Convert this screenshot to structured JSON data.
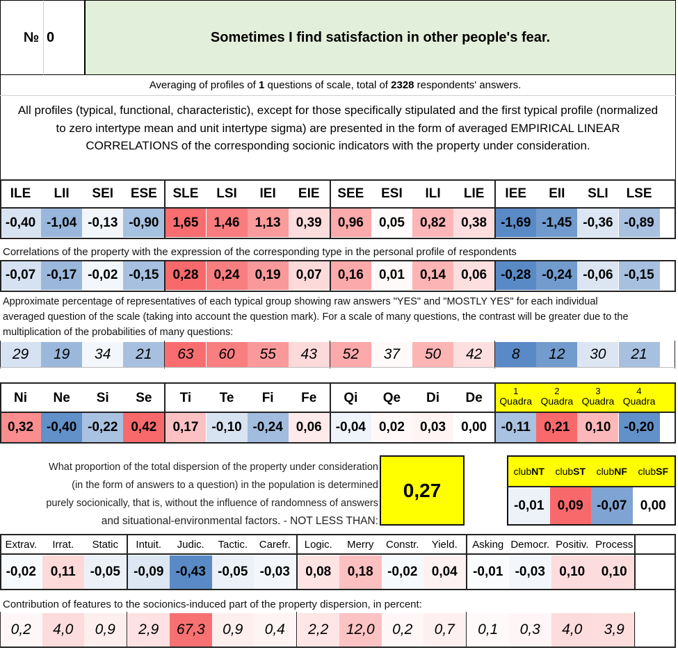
{
  "header": {
    "number_label": "№",
    "number_value": "0",
    "title": "Sometimes I find satisfaction in other people's fear."
  },
  "intro": {
    "avg_prefix": "Averaging of profiles of ",
    "questions_count": "1",
    "avg_middle": " questions of scale, total of ",
    "respondents_count": "2328",
    "avg_suffix": " respondents' answers.",
    "description": "All profiles (typical, functional, characteristic), except for those specifically stipulated and the first typical profile (normalized to zero intertype mean and unit intertype sigma) are presented in the form of averaged EMPIRICAL LINEAR CORRELATIONS of the corresponding socionic indicators with the property under consideration."
  },
  "types": {
    "labels": [
      "ILE",
      "LII",
      "SEI",
      "ESE",
      "SLE",
      "LSI",
      "IEI",
      "EIE",
      "SEE",
      "ESI",
      "ILI",
      "LIE",
      "IEE",
      "EII",
      "SLI",
      "LSE"
    ],
    "normalized": [
      "-0,40",
      "-1,04",
      "-0,13",
      "-0,90",
      "1,65",
      "1,46",
      "1,13",
      "0,39",
      "0,96",
      "0,05",
      "0,82",
      "0,38",
      "-1,69",
      "-1,45",
      "-0,36",
      "-0,89"
    ],
    "correlation_note": "Correlations of the property with the expression of the corresponding type in the personal profile of respondents",
    "correlations": [
      "-0,07",
      "-0,17",
      "-0,02",
      "-0,15",
      "0,28",
      "0,24",
      "0,19",
      "0,07",
      "0,16",
      "0,01",
      "0,14",
      "0,06",
      "-0,28",
      "-0,24",
      "-0,06",
      "-0,15"
    ],
    "percent_note_1": "Approximate percentage of representatives of each typical group showing raw answers \"YES\" and \"MOSTLY YES\" for each individual",
    "percent_note_2": "averaged question of the scale (taking into account the question mark). For a scale of many questions, the contrast will be greater due to the",
    "percent_note_3": "multiplication of the probabilities of many questions:",
    "percentages": [
      "29",
      "19",
      "34",
      "21",
      "63",
      "60",
      "55",
      "43",
      "52",
      "37",
      "50",
      "42",
      "8",
      "12",
      "30",
      "21"
    ]
  },
  "functions": {
    "labels": [
      "Ni",
      "Ne",
      "Si",
      "Se",
      "Ti",
      "Te",
      "Fi",
      "Fe",
      "Qi",
      "Qe",
      "Di",
      "De"
    ],
    "values": [
      "0,32",
      "-0,40",
      "-0,22",
      "0,42",
      "0,17",
      "-0,10",
      "-0,24",
      "0,06",
      "-0,04",
      "0,02",
      "0,03",
      "0,00"
    ]
  },
  "quadras": {
    "numbers": [
      "1",
      "2",
      "3",
      "4"
    ],
    "word": "Quadra",
    "values": [
      "-0,11",
      "0,21",
      "0,10",
      "-0,20"
    ]
  },
  "dispersion": {
    "text_1": "What proportion of the total dispersion of the property under consideration",
    "text_2": "(in the form of answers to a question) in the population is determined",
    "text_3": "purely socionically, that is, without the influence of randomness of answers",
    "text_4": "and situational-environmental factors. - NOT LESS THAN:",
    "value": "0,27"
  },
  "clubs": {
    "prefix": "club",
    "labels": [
      "NT",
      "ST",
      "NF",
      "SF"
    ],
    "values": [
      "-0,01",
      "0,09",
      "-0,07",
      "0,00"
    ]
  },
  "features": {
    "labels": [
      "Extrav.",
      "Irrat.",
      "Static",
      "Intuit.",
      "Judic.",
      "Tactic.",
      "Carefr.",
      "Logic.",
      "Merry",
      "Constr.",
      "Yield.",
      "Asking",
      "Democr.",
      "Positiv.",
      "Process"
    ],
    "values": [
      "-0,02",
      "0,11",
      "-0,05",
      "-0,09",
      "-0,43",
      "-0,05",
      "-0,03",
      "0,08",
      "0,18",
      "-0,02",
      "0,04",
      "-0,01",
      "-0,03",
      "0,10",
      "0,10"
    ],
    "contribution_note": "Contribution of features to the sociоnics-induced part of the property dispersion, in percent:",
    "contributions": [
      "0,2",
      "4,0",
      "0,9",
      "2,9",
      "67,3",
      "0,9",
      "0,4",
      "2,2",
      "12,0",
      "0,2",
      "0,7",
      "0,1",
      "0,3",
      "4,0",
      "3,9"
    ]
  },
  "colors": {
    "header_bg": "#e2efda",
    "quadra_bg": "#ffff00",
    "highlight_bg": "#ffff00",
    "positive": "#f8696b",
    "negative": "#5a8ac6"
  }
}
